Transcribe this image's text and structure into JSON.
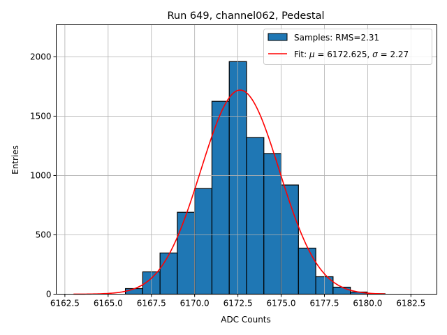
{
  "chart_data": {
    "type": "bar",
    "title": "Run 649, channel062, Pedestal",
    "xlabel": "ADC Counts",
    "ylabel": "Entries",
    "xlim": [
      6162.0,
      6184.0
    ],
    "ylim": [
      0,
      2270
    ],
    "xticks": [
      "6162.5",
      "6165.0",
      "6167.5",
      "6170.0",
      "6172.5",
      "6175.0",
      "6177.5",
      "6180.0",
      "6182.5"
    ],
    "yticks": [
      "0",
      "500",
      "1000",
      "1500",
      "2000"
    ],
    "grid": true,
    "legend_position": "top-right",
    "bins": [
      6166,
      6167,
      6168,
      6169,
      6170,
      6171,
      6172,
      6173,
      6174,
      6175,
      6176,
      6177,
      6178,
      6179,
      6180
    ],
    "bin_width": 1,
    "values": [
      47,
      188,
      347,
      690,
      890,
      1625,
      1960,
      1320,
      1185,
      920,
      388,
      147,
      59,
      18,
      4
    ],
    "bar_color": "#1f77b4",
    "fit": {
      "mu": 6172.625,
      "sigma": 2.27,
      "amplitude": 1720,
      "range": [
        6163,
        6181
      ],
      "color": "#ff0000"
    },
    "legend": {
      "samples": "Samples: RMS=2.31",
      "fit_prefix": "Fit: ",
      "mu_symbol": "μ",
      "mu_text": " = 6172.625, ",
      "sigma_symbol": "σ",
      "sigma_text": " = 2.27"
    }
  }
}
